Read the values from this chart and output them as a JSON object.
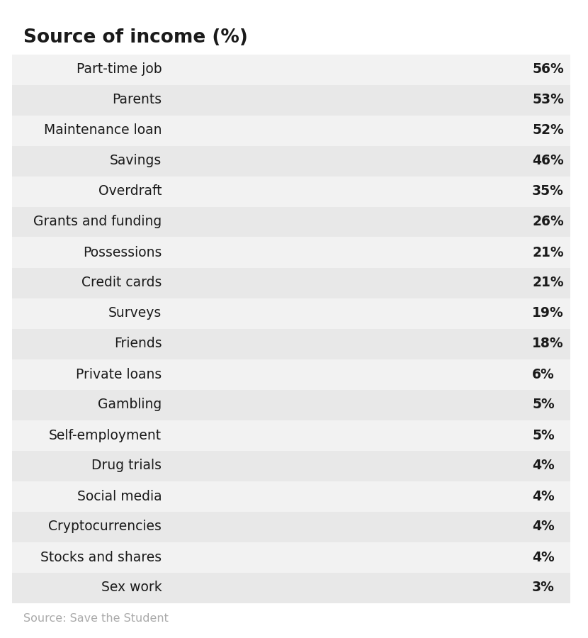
{
  "title": "Source of income (%)",
  "categories": [
    "Part-time job",
    "Parents",
    "Maintenance loan",
    "Savings",
    "Overdraft",
    "Grants and funding",
    "Possessions",
    "Credit cards",
    "Surveys",
    "Friends",
    "Private loans",
    "Gambling",
    "Self-employment",
    "Drug trials",
    "Social media",
    "Cryptocurrencies",
    "Stocks and shares",
    "Sex work"
  ],
  "values": [
    56,
    53,
    52,
    46,
    35,
    26,
    21,
    21,
    19,
    18,
    6,
    5,
    5,
    4,
    4,
    4,
    4,
    3
  ],
  "bar_color": "#F7941D",
  "gray_color": "#CCCCCC",
  "row_colors": [
    "#F2F2F2",
    "#E8E8E8"
  ],
  "text_color": "#1A1A1A",
  "source_text": "Source: Save the Student",
  "source_color": "#AAAAAA",
  "max_value": 60,
  "title_fontsize": 19,
  "label_fontsize": 13.5,
  "value_fontsize": 13.5,
  "source_fontsize": 11.5
}
